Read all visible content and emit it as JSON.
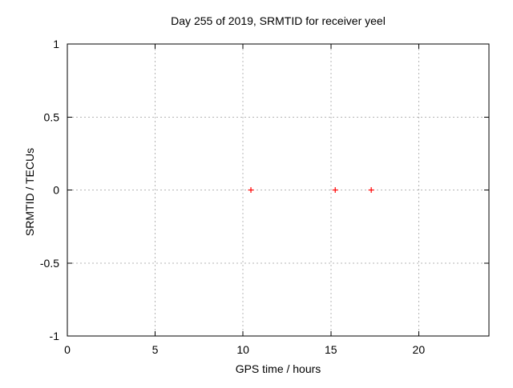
{
  "chart_data": {
    "type": "scatter",
    "title": "Day 255 of 2019, SRMTID for receiver yeel",
    "xlabel": "GPS time / hours",
    "ylabel": "SRMTID / TECUs",
    "xlim": [
      0,
      24
    ],
    "ylim": [
      -1,
      1
    ],
    "xticks": [
      0,
      5,
      10,
      15,
      20
    ],
    "xtick_labels": [
      "0",
      "5",
      "10",
      "15",
      "20"
    ],
    "yticks": [
      1,
      0.5,
      0,
      -0.5,
      -1
    ],
    "ytick_labels": [
      "1",
      "0.5",
      "0",
      "-0.5",
      "-1"
    ],
    "grid": true,
    "legend": "none",
    "series": [
      {
        "name": "SRMTID",
        "marker": "plus",
        "color": "#ff0000",
        "points": [
          {
            "x": 10.45,
            "y": 0.0
          },
          {
            "x": 15.25,
            "y": 0.0
          },
          {
            "x": 17.3,
            "y": 0.0
          }
        ]
      }
    ]
  },
  "colors": {
    "background": "#ffffff",
    "axis": "#000000",
    "grid": "#b4b4b4",
    "text": "#000000",
    "marker": "#ff0000"
  }
}
